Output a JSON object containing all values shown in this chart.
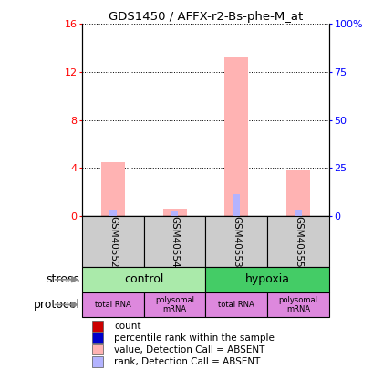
{
  "title": "GDS1450 / AFFX-r2-Bs-phe-M_at",
  "samples": [
    "GSM40552",
    "GSM40554",
    "GSM40553",
    "GSM40555"
  ],
  "bar_values": [
    4.5,
    0.6,
    13.2,
    3.8
  ],
  "rank_values": [
    0.45,
    0.35,
    1.85,
    0.45
  ],
  "left_ylim": [
    0,
    16
  ],
  "right_ylim": [
    0,
    100
  ],
  "left_yticks": [
    0,
    4,
    8,
    12,
    16
  ],
  "right_yticks": [
    0,
    25,
    50,
    75,
    100
  ],
  "left_yticklabels": [
    "0",
    "4",
    "8",
    "12",
    "16"
  ],
  "right_yticklabels": [
    "0",
    "25",
    "50",
    "75",
    "100%"
  ],
  "bar_color": "#ffb3b3",
  "rank_color": "#b3b3ff",
  "stress_groups": [
    {
      "label": "control",
      "start": 0,
      "end": 2,
      "color": "#aaeaaa"
    },
    {
      "label": "hypoxia",
      "start": 2,
      "end": 4,
      "color": "#44cc66"
    }
  ],
  "protocol_labels": [
    "total RNA",
    "polysomal\nmRNA",
    "total RNA",
    "polysomal\nmRNA"
  ],
  "protocol_color": "#dd88dd",
  "sample_box_color": "#cccccc",
  "legend_items": [
    {
      "color": "#cc0000",
      "label": "count"
    },
    {
      "color": "#0000cc",
      "label": "percentile rank within the sample"
    },
    {
      "color": "#ffb3b3",
      "label": "value, Detection Call = ABSENT"
    },
    {
      "color": "#b3b3ff",
      "label": "rank, Detection Call = ABSENT"
    }
  ]
}
